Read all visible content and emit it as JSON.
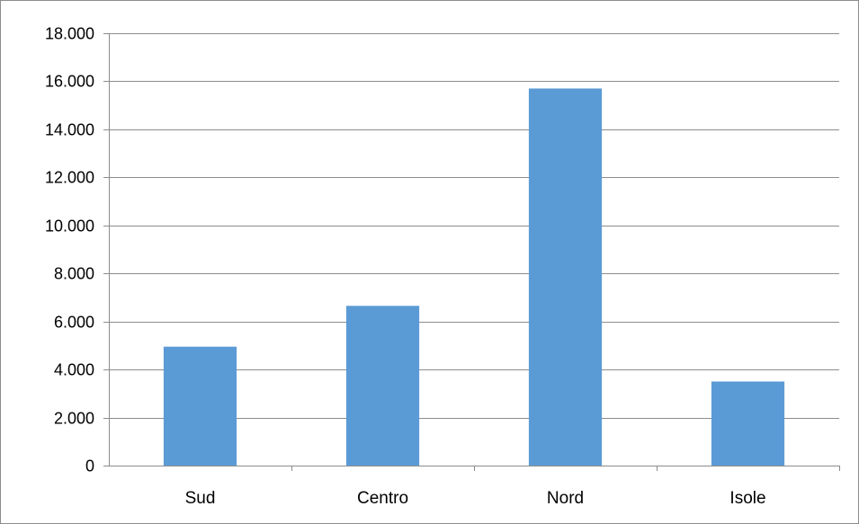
{
  "chart_data": {
    "type": "bar",
    "title": "",
    "xlabel": "",
    "ylabel": "",
    "categories": [
      "Sud",
      "Centro",
      "Nord",
      "Isole"
    ],
    "values": [
      4950,
      6650,
      15700,
      3500
    ],
    "ylim": [
      0,
      18000
    ],
    "y_ticks": [
      0,
      2000,
      4000,
      6000,
      8000,
      10000,
      12000,
      14000,
      16000,
      18000
    ],
    "y_tick_labels": [
      "0",
      "2.000",
      "4.000",
      "6.000",
      "8.000",
      "10.000",
      "12.000",
      "14.000",
      "16.000",
      "18.000"
    ],
    "grid": "horizontal",
    "legend": "none",
    "colors": {
      "bar": "#5b9bd5",
      "grid": "#8c8c8c",
      "axis": "#8c8c8c",
      "frame": "#8c8c8c"
    }
  }
}
